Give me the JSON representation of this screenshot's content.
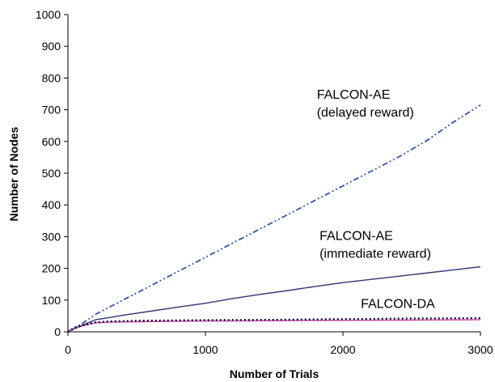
{
  "chart_data": {
    "type": "line",
    "title": "",
    "xlabel": "Number of Trials",
    "ylabel": "Number of Nodes",
    "xlim": [
      0,
      3000
    ],
    "ylim": [
      0,
      1000
    ],
    "x_ticks": [
      0,
      1000,
      2000,
      3000
    ],
    "y_ticks": [
      0,
      100,
      200,
      300,
      400,
      500,
      600,
      700,
      800,
      900,
      1000
    ],
    "grid": false,
    "legend": "none",
    "series": [
      {
        "id": "delayed",
        "x": [
          0,
          50,
          100,
          200,
          400,
          600,
          800,
          1000,
          1200,
          1400,
          1600,
          1800,
          2000,
          2200,
          2400,
          2600,
          2800,
          3000
        ],
        "y": [
          0,
          15,
          25,
          55,
          100,
          145,
          190,
          235,
          280,
          325,
          370,
          415,
          460,
          505,
          550,
          600,
          660,
          715
        ],
        "color": "#3355aa",
        "style": "dash-dot"
      },
      {
        "id": "immediate",
        "x": [
          0,
          50,
          100,
          200,
          300,
          400,
          600,
          800,
          1000,
          1200,
          1400,
          1600,
          1800,
          2000,
          2200,
          2400,
          2600,
          2800,
          3000
        ],
        "y": [
          0,
          12,
          20,
          38,
          45,
          52,
          65,
          78,
          90,
          105,
          118,
          130,
          143,
          155,
          165,
          175,
          185,
          195,
          205
        ],
        "color": "#33337a",
        "style": "solid"
      },
      {
        "id": "falcon_da",
        "x": [
          0,
          50,
          100,
          200,
          300,
          500,
          1000,
          1500,
          2000,
          2500,
          3000
        ],
        "y": [
          0,
          10,
          18,
          28,
          30,
          32,
          34,
          35,
          36,
          37,
          38
        ],
        "color": "#cc44aa",
        "style": "solid"
      },
      {
        "id": "falcon_da_dotted",
        "x": [
          0,
          50,
          100,
          200,
          300,
          500,
          1000,
          1500,
          2000,
          2500,
          3000
        ],
        "y": [
          0,
          12,
          20,
          30,
          33,
          35,
          37,
          38,
          40,
          42,
          43
        ],
        "color": "#000033",
        "style": "dotted"
      }
    ],
    "annotations": [
      {
        "lines": [
          "FALCON-AE",
          "(delayed reward)"
        ],
        "x": 1810,
        "y": 735
      },
      {
        "lines": [
          "FALCON-AE",
          "(immediate reward)"
        ],
        "x": 1830,
        "y": 290
      },
      {
        "lines": [
          "FALCON-DA"
        ],
        "x": 2130,
        "y": 75
      }
    ]
  }
}
